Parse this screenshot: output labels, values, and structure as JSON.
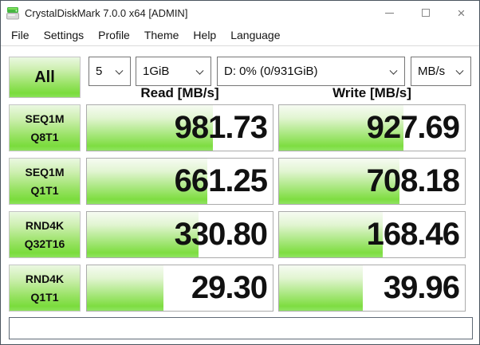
{
  "window": {
    "title": "CrystalDiskMark 7.0.0 x64 [ADMIN]",
    "close_glyph": "×"
  },
  "menu": {
    "items": [
      "File",
      "Settings",
      "Profile",
      "Theme",
      "Help",
      "Language"
    ]
  },
  "toolbar": {
    "all_button": "All",
    "test_count": "5",
    "test_size": "1GiB",
    "target_drive": "D: 0% (0/931GiB)",
    "unit": "MB/s"
  },
  "results": {
    "read_header": "Read [MB/s]",
    "write_header": "Write [MB/s]",
    "rows": [
      {
        "label_line1": "SEQ1M",
        "label_line2": "Q8T1",
        "read": "981.73",
        "write": "927.69",
        "read_fill": 68,
        "write_fill": 67
      },
      {
        "label_line1": "SEQ1M",
        "label_line2": "Q1T1",
        "read": "661.25",
        "write": "708.18",
        "read_fill": 65,
        "write_fill": 65
      },
      {
        "label_line1": "RND4K",
        "label_line2": "Q32T16",
        "read": "330.80",
        "write": "168.46",
        "read_fill": 60,
        "write_fill": 56
      },
      {
        "label_line1": "RND4K",
        "label_line2": "Q1T1",
        "read": "29.30",
        "write": "39.96",
        "read_fill": 41,
        "write_fill": 45
      }
    ]
  },
  "comment": {
    "value": ""
  },
  "colors": {
    "green_light": "#eaf8e1",
    "green": "#7adc3c",
    "window_border": "#4a545e"
  }
}
